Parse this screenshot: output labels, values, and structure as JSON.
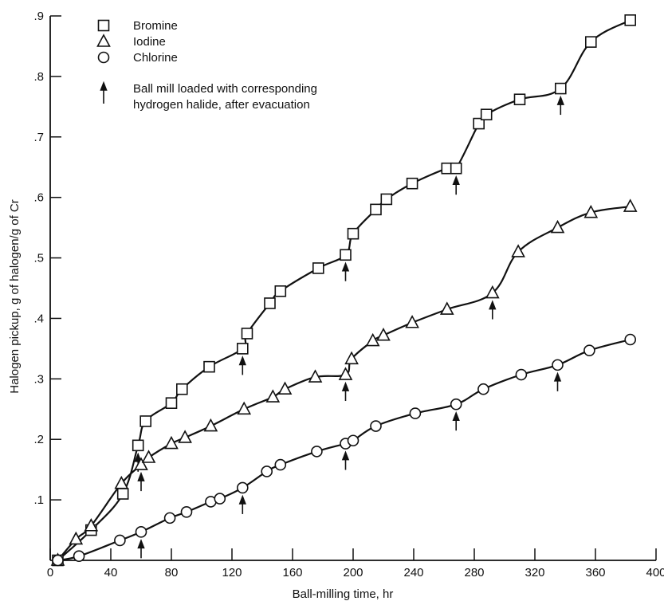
{
  "chart_data": {
    "type": "line",
    "xlabel": "Ball-milling time,  hr",
    "ylabel": "Halogen pickup,  g of halogen/g of Cr",
    "xlim": [
      0,
      400
    ],
    "ylim": [
      0,
      0.9
    ],
    "x_ticks": [
      0,
      40,
      80,
      120,
      160,
      200,
      240,
      280,
      320,
      360,
      400
    ],
    "x_tick_labels": [
      "0",
      "40",
      "80",
      "120",
      "160",
      "200",
      "240",
      "280",
      "320",
      "360",
      "400"
    ],
    "y_ticks": [
      0.1,
      0.2,
      0.3,
      0.4,
      0.5,
      0.6,
      0.7,
      0.8,
      0.9
    ],
    "y_tick_labels": [
      ".1",
      ".2",
      ".3",
      ".4",
      ".5",
      ".6",
      ".7",
      ".8",
      ".9"
    ],
    "grid": false,
    "legend_position": "top-left",
    "arrow_note": "Ball mill loaded with corresponding\n  hydrogen halide, after evacuation",
    "series": [
      {
        "name": "Bromine",
        "marker": "square",
        "x": [
          5,
          27,
          48,
          58,
          63,
          80,
          87,
          105,
          127,
          130,
          145,
          152,
          177,
          195,
          200,
          215,
          222,
          239,
          262,
          268,
          283,
          288,
          310,
          337,
          357,
          383
        ],
        "y": [
          0.0,
          0.05,
          0.11,
          0.19,
          0.23,
          0.26,
          0.283,
          0.32,
          0.35,
          0.375,
          0.425,
          0.445,
          0.483,
          0.505,
          0.54,
          0.58,
          0.597,
          0.623,
          0.648,
          0.648,
          0.722,
          0.737,
          0.762,
          0.78,
          0.857,
          0.893
        ],
        "arrows_at": [
          58,
          127,
          195,
          268,
          337
        ]
      },
      {
        "name": "Iodine",
        "marker": "triangle",
        "x": [
          5,
          17,
          27,
          47,
          60,
          65,
          80,
          89,
          106,
          128,
          147,
          155,
          175,
          195,
          199,
          213,
          220,
          239,
          262,
          292,
          309,
          335,
          357,
          383
        ],
        "y": [
          0.0,
          0.035,
          0.057,
          0.127,
          0.158,
          0.17,
          0.193,
          0.203,
          0.222,
          0.25,
          0.27,
          0.283,
          0.303,
          0.307,
          0.333,
          0.363,
          0.372,
          0.393,
          0.415,
          0.442,
          0.51,
          0.55,
          0.575,
          0.585
        ],
        "arrows_at": [
          60,
          195,
          292
        ]
      },
      {
        "name": "Chlorine",
        "marker": "circle",
        "x": [
          5,
          19,
          46,
          60,
          79,
          90,
          106,
          112,
          127,
          143,
          152,
          176,
          195,
          200,
          215,
          241,
          268,
          286,
          311,
          335,
          356,
          383
        ],
        "y": [
          0.0,
          0.007,
          0.033,
          0.047,
          0.07,
          0.08,
          0.097,
          0.102,
          0.12,
          0.147,
          0.158,
          0.18,
          0.193,
          0.198,
          0.222,
          0.243,
          0.258,
          0.283,
          0.307,
          0.323,
          0.347,
          0.365
        ],
        "arrows_at": [
          60,
          127,
          195,
          268,
          335
        ]
      }
    ]
  },
  "colors": {
    "ink": "#111111",
    "background": "#ffffff"
  }
}
